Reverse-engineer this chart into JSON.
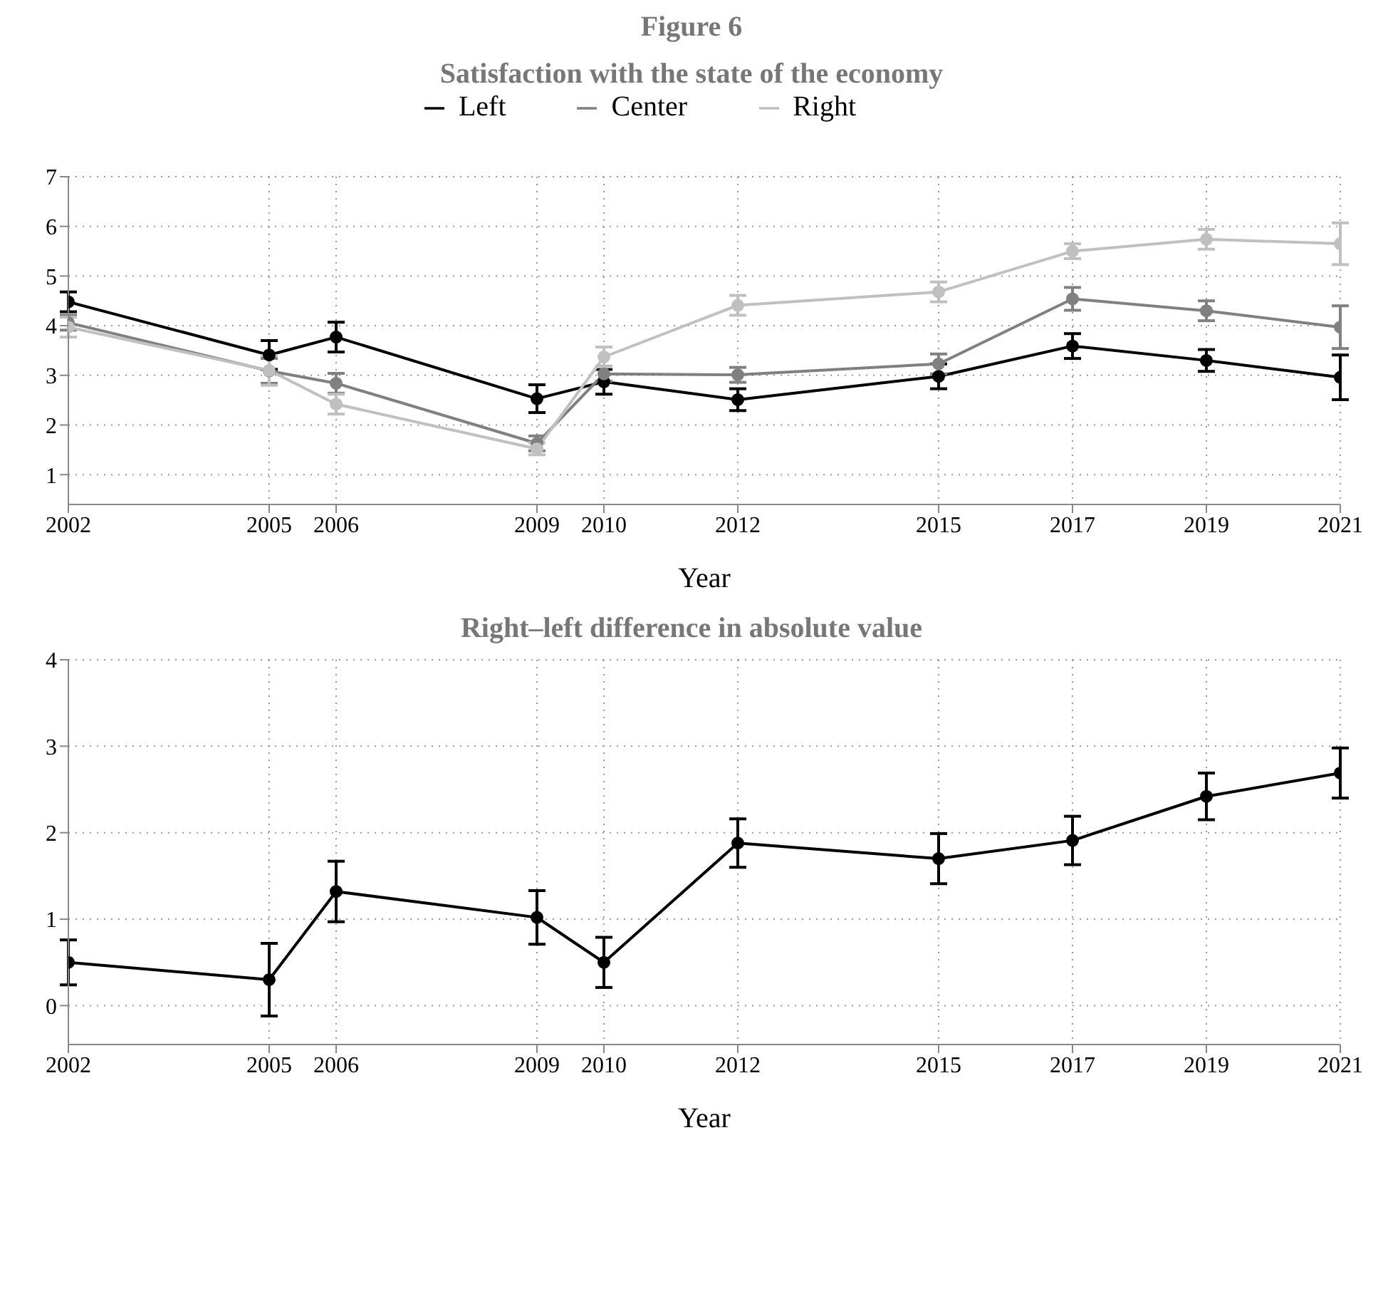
{
  "chart_data": [
    {
      "type": "line",
      "title": "Figure 6",
      "subtitle": "Satisfaction with the state of the economy",
      "xlabel": "Year",
      "x": [
        2002,
        2005,
        2006,
        2009,
        2010,
        2012,
        2015,
        2017,
        2019,
        2021
      ],
      "series": [
        {
          "name": "Left",
          "color": "#000000",
          "values": [
            4.48,
            3.41,
            3.77,
            2.53,
            2.87,
            2.51,
            2.98,
            3.59,
            3.3,
            2.96
          ],
          "errors": [
            0.2,
            0.29,
            0.3,
            0.28,
            0.25,
            0.22,
            0.25,
            0.25,
            0.22,
            0.45
          ]
        },
        {
          "name": "Center",
          "color": "#808080",
          "values": [
            4.06,
            3.09,
            2.84,
            1.63,
            3.03,
            3.01,
            3.23,
            4.54,
            4.3,
            3.97
          ],
          "errors": [
            0.15,
            0.25,
            0.2,
            0.15,
            0.15,
            0.15,
            0.2,
            0.23,
            0.2,
            0.43
          ]
        },
        {
          "name": "Right",
          "color": "#c0c0c0",
          "values": [
            3.97,
            3.1,
            2.42,
            1.52,
            3.37,
            4.41,
            4.68,
            5.5,
            5.74,
            5.65
          ],
          "errors": [
            0.2,
            0.3,
            0.2,
            0.12,
            0.2,
            0.2,
            0.2,
            0.15,
            0.2,
            0.42
          ]
        }
      ],
      "xlim": [
        2002,
        2021
      ],
      "xticks": [
        2002,
        2005,
        2006,
        2009,
        2010,
        2012,
        2015,
        2017,
        2019,
        2021
      ],
      "ylim": [
        0.4,
        7
      ],
      "yticks": [
        1,
        2,
        3,
        4,
        5,
        6,
        7
      ],
      "grid": true,
      "legend": "top",
      "marker": "circle",
      "line_style": "solid"
    },
    {
      "type": "line",
      "title": "Right–left difference in absolute value",
      "xlabel": "Year",
      "x": [
        2002,
        2005,
        2006,
        2009,
        2010,
        2012,
        2015,
        2017,
        2019,
        2021
      ],
      "series": [
        {
          "color": "#000000",
          "values": [
            0.5,
            0.3,
            1.32,
            1.02,
            0.5,
            1.88,
            1.7,
            1.91,
            2.42,
            2.69
          ],
          "errors": [
            0.26,
            0.42,
            0.35,
            0.31,
            0.29,
            0.28,
            0.29,
            0.28,
            0.27,
            0.29
          ]
        }
      ],
      "xlim": [
        2002,
        2021
      ],
      "xticks": [
        2002,
        2005,
        2006,
        2009,
        2010,
        2012,
        2015,
        2017,
        2019,
        2021
      ],
      "ylim": [
        -0.45,
        4
      ],
      "yticks": [
        0,
        1,
        2,
        3,
        4
      ],
      "grid": true,
      "legend": false,
      "marker": "circle",
      "line_style": "solid"
    }
  ]
}
